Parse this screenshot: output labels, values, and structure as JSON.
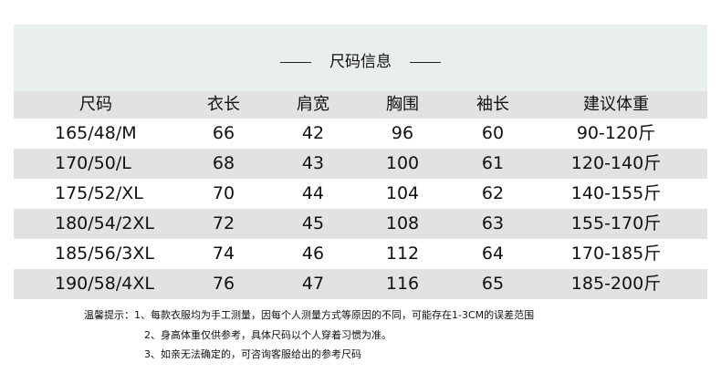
{
  "title": "尺码信息",
  "headers": [
    "尺码",
    "衣长",
    "肩宽",
    "胸围",
    "袖长",
    "建议体重"
  ],
  "rows": [
    [
      "165/48/M",
      "66",
      "42",
      "96",
      "60",
      "90-120斤"
    ],
    [
      "170/50/L",
      "68",
      "43",
      "100",
      "61",
      "120-140斤"
    ],
    [
      "175/52/XL",
      "70",
      "44",
      "104",
      "62",
      "140-155斤"
    ],
    [
      "180/54/2XL",
      "72",
      "45",
      "108",
      "63",
      "155-170斤"
    ],
    [
      "185/56/3XL",
      "74",
      "46",
      "112",
      "64",
      "170-185斤"
    ],
    [
      "190/58/4XL",
      "76",
      "47",
      "116",
      "65",
      "185-200斤"
    ]
  ],
  "notes": {
    "label": "温馨提示：",
    "items": [
      "1、每款衣服均为手工测量，因每个人测量方式等原因的不同，可能存在1-3CM的误差范围",
      "2、身高体重仅供参考，具体尺码以个人穿着习惯为准。",
      "3、如亲无法确定的，可咨询客服给出的参考尺码"
    ]
  },
  "colors": {
    "title_band": "#e9eeee",
    "stripe": "#e2e2e2"
  }
}
